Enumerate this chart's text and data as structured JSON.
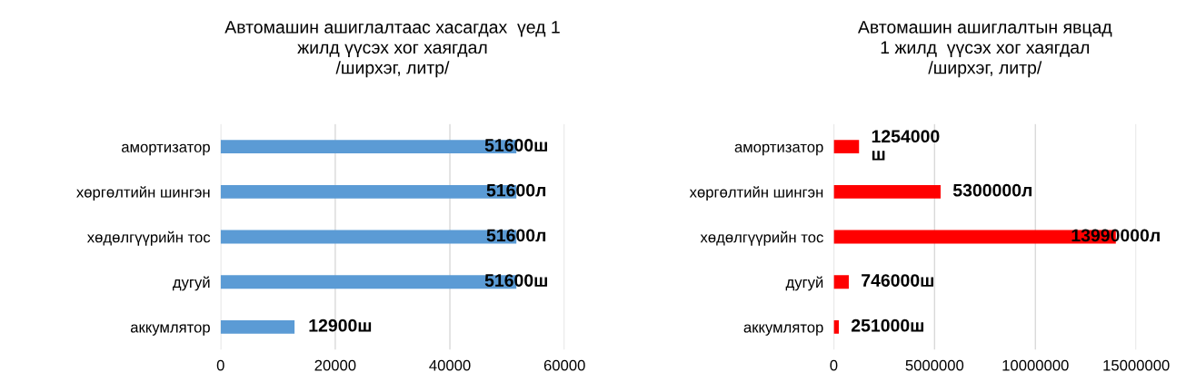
{
  "chart_data": [
    {
      "type": "bar",
      "orientation": "horizontal",
      "title": "Автомашин ашиглалтаас хасагдах  үед 1\nжилд үүсэх хог хаягдал\n/ширхэг, литр/",
      "categories": [
        "амортизатор",
        "хөргөлтийн шингэн",
        "хөдөлгүүрийн тос",
        "дугуй",
        "аккумлятор"
      ],
      "values": [
        51600,
        51600,
        51600,
        51600,
        12900
      ],
      "value_labels": [
        "51600ш",
        "51600л",
        "51600л",
        "51600ш",
        "12900ш"
      ],
      "color": "#5b9bd5",
      "xlim": [
        0,
        60000
      ],
      "xticks": [
        0,
        20000,
        40000,
        60000
      ],
      "grid": "x"
    },
    {
      "type": "bar",
      "orientation": "horizontal",
      "title": "Автомашин ашиглалтын явцад\n1 жилд  үүсэх хог хаягдал\n/ширхэг, литр/",
      "categories": [
        "амортизатор",
        "хөргөлтийн шингэн",
        "хөдөлгүүрийн тос",
        "дугуй",
        "аккумлятор"
      ],
      "values": [
        1254000,
        5300000,
        13990000,
        746000,
        251000
      ],
      "value_labels": [
        "1254000\nш",
        "5300000л",
        "13990000л",
        "746000ш",
        "251000ш"
      ],
      "color": "#ff0000",
      "xlim": [
        0,
        15000000
      ],
      "xticks": [
        0,
        5000000,
        10000000,
        15000000
      ],
      "grid": "x"
    }
  ]
}
